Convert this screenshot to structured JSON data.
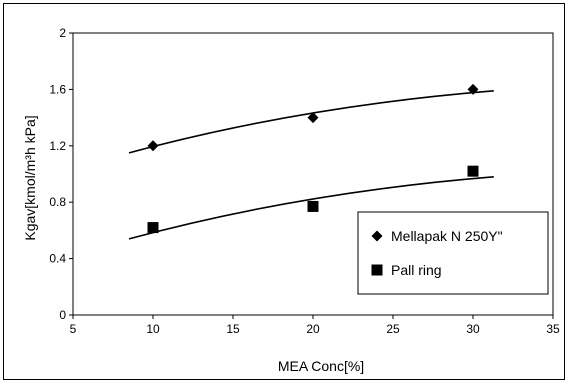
{
  "chart_data": {
    "type": "scatter",
    "title": "",
    "xlabel": "MEA Conc[%]",
    "ylabel": "Kgav[kmol/m³h kPa]",
    "xlim": [
      5,
      35
    ],
    "ylim": [
      0,
      2
    ],
    "xticks": [
      5,
      10,
      15,
      20,
      25,
      30,
      35
    ],
    "yticks": [
      0,
      0.4,
      0.8,
      1.2,
      1.6,
      2
    ],
    "ytick_labels": [
      "0",
      "0.4",
      "0.8",
      "1.2",
      "1.6",
      "2"
    ],
    "grid": false,
    "legend_position": "lower-right",
    "series": [
      {
        "name": "Mellapak N 250Y\"",
        "marker": "diamond",
        "color": "#000000",
        "x": [
          10,
          20,
          30
        ],
        "y": [
          1.2,
          1.4,
          1.6
        ],
        "trend_x": [
          8.5,
          31.3
        ],
        "trend_y": [
          1.15,
          1.59
        ]
      },
      {
        "name": "Pall ring",
        "marker": "square",
        "color": "#000000",
        "x": [
          10,
          20,
          30
        ],
        "y": [
          0.62,
          0.77,
          1.02
        ],
        "trend_x": [
          8.5,
          31.3
        ],
        "trend_y": [
          0.54,
          0.98
        ]
      }
    ]
  }
}
